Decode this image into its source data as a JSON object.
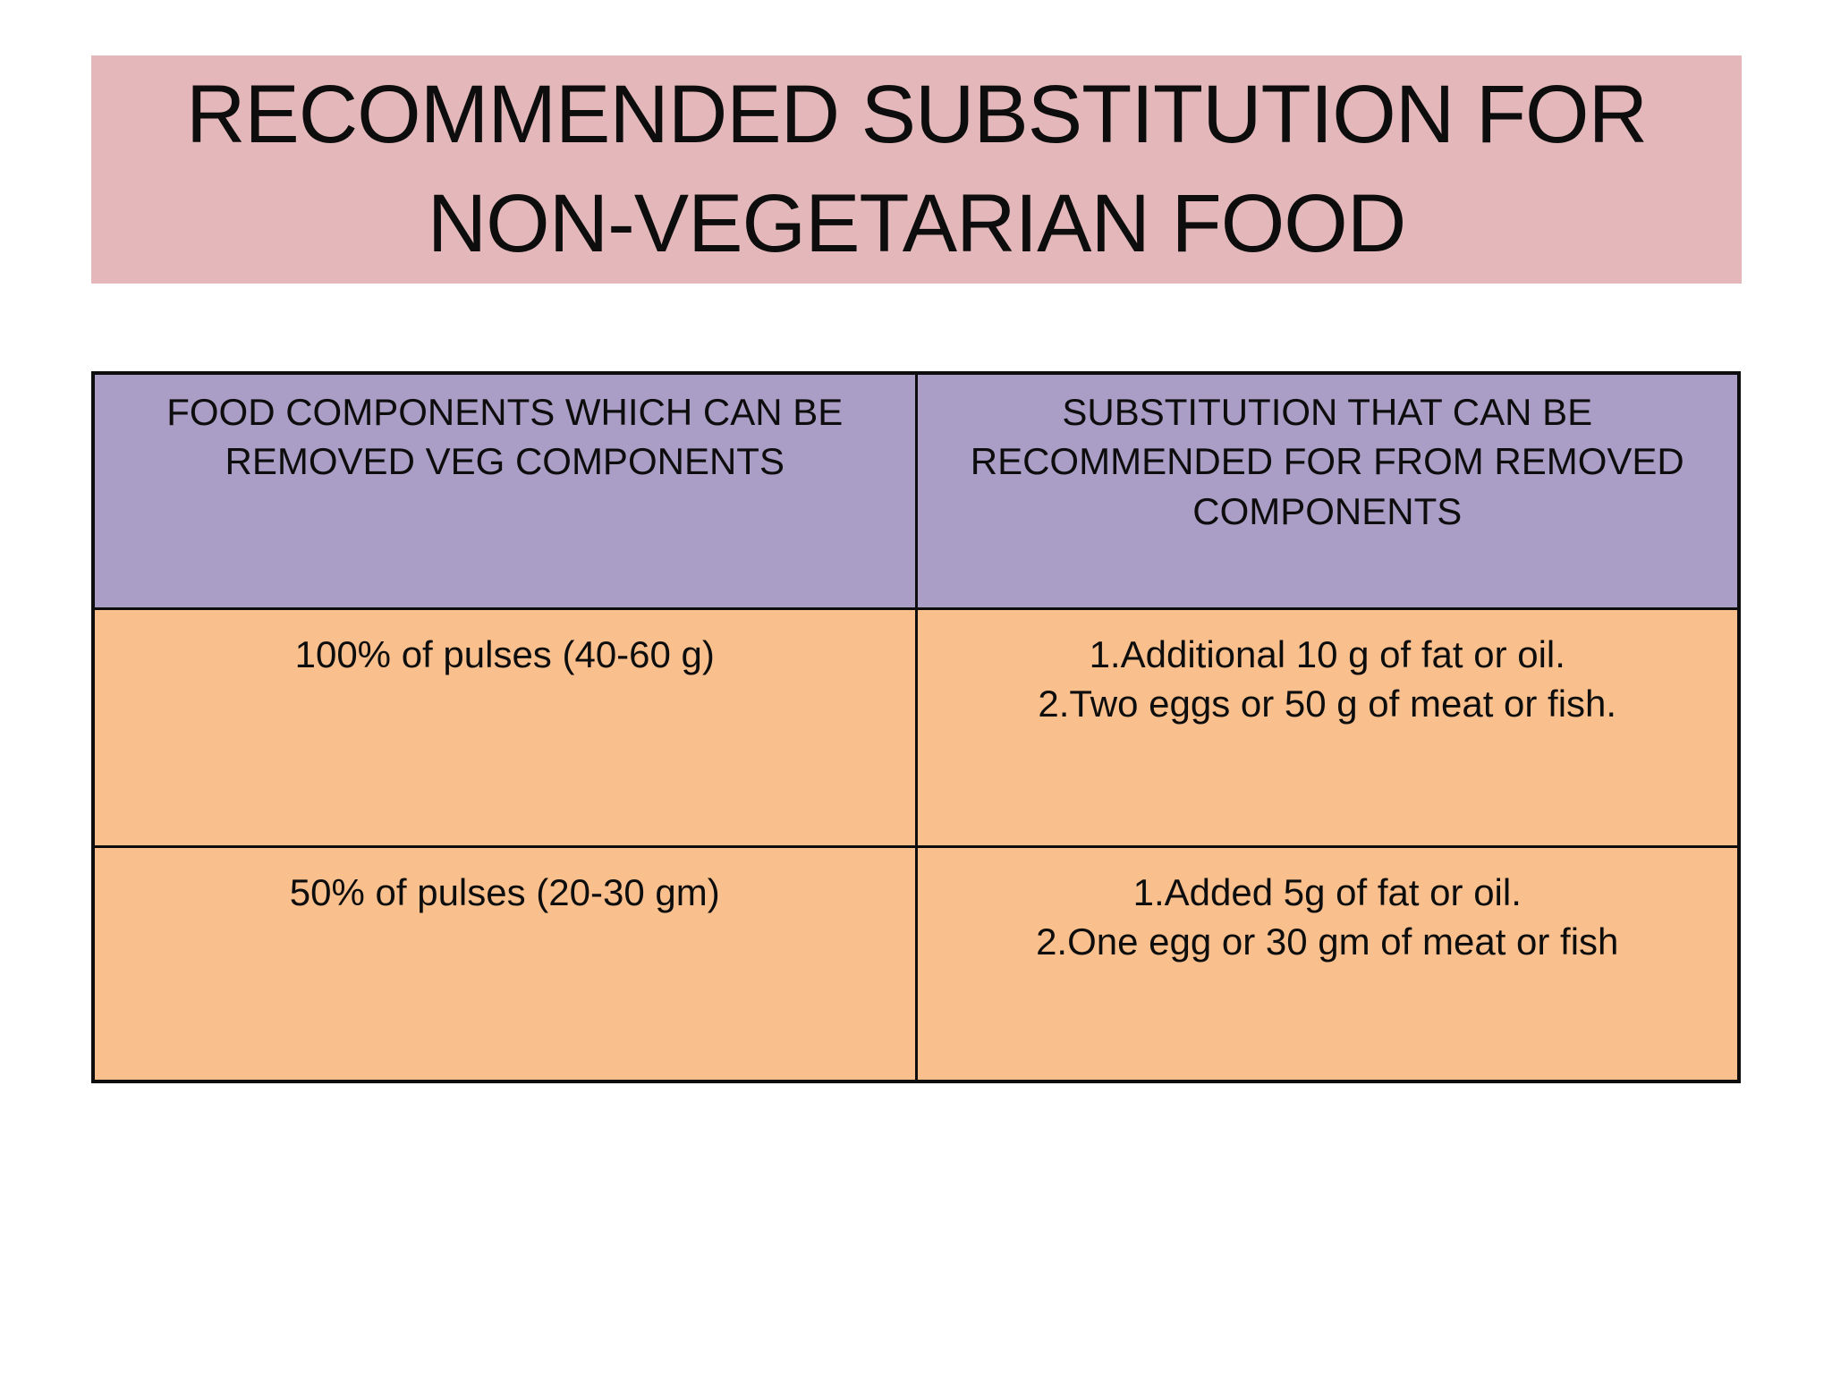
{
  "slide": {
    "title_line1": "RECOMMENDED SUBSTITUTION FOR",
    "title_line2": "NON-VEGETARIAN FOOD",
    "colors": {
      "title_bg": "#e4b8bb",
      "header_bg": "#ab9ec6",
      "row_bg": "#f9c08e",
      "border": "#0d0d0d",
      "page_bg": "#ffffff",
      "text": "#0d0d0d"
    },
    "table": {
      "headers": [
        "FOOD COMPONENTS WHICH CAN BE REMOVED VEG COMPONENTS",
        "SUBSTITUTION THAT CAN BE RECOMMENDED FOR FROM REMOVED COMPONENTS"
      ],
      "rows": [
        {
          "left": "100% of pulses (40-60 g)",
          "right_lines": [
            "1.Additional 10 g of fat or oil.",
            "2.Two eggs or 50 g of meat or fish."
          ]
        },
        {
          "left": "50% of pulses (20-30 gm)",
          "right_lines": [
            "1.Added 5g of fat or oil.",
            "2.One egg or 30 gm of meat or fish"
          ]
        }
      ]
    }
  }
}
